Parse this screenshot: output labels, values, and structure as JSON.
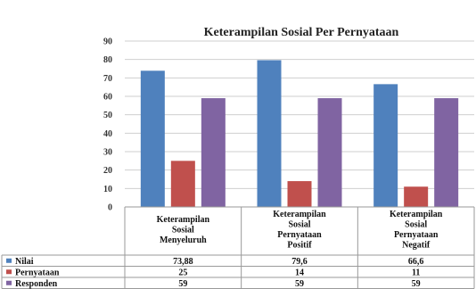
{
  "chart_data": {
    "type": "bar",
    "title": "Keterampilan Sosial Per Pernyataan",
    "categories": [
      [
        "Keterampilan",
        "Sosial",
        "Menyeluruh"
      ],
      [
        "Keterampilan",
        "Sosial",
        "Pernyataan",
        "Positif"
      ],
      [
        "Keterampilan",
        "Sosial",
        "Pernyataan",
        "Negatif"
      ]
    ],
    "series": [
      {
        "name": "Nilai",
        "color": "#4f81bd",
        "values": [
          73.88,
          79.6,
          66.6
        ],
        "labels": [
          "73,88",
          "79,6",
          "66,6"
        ]
      },
      {
        "name": "Pernyataan",
        "color": "#c0504d",
        "values": [
          25,
          14,
          11
        ],
        "labels": [
          "25",
          "14",
          "11"
        ]
      },
      {
        "name": "Responden",
        "color": "#8064a2",
        "values": [
          59,
          59,
          59
        ],
        "labels": [
          "59",
          "59",
          "59"
        ]
      }
    ],
    "ylim": [
      0,
      90
    ],
    "yticks": [
      0,
      10,
      20,
      30,
      40,
      50,
      60,
      70,
      80,
      90
    ],
    "grid": true,
    "data_table": true
  }
}
